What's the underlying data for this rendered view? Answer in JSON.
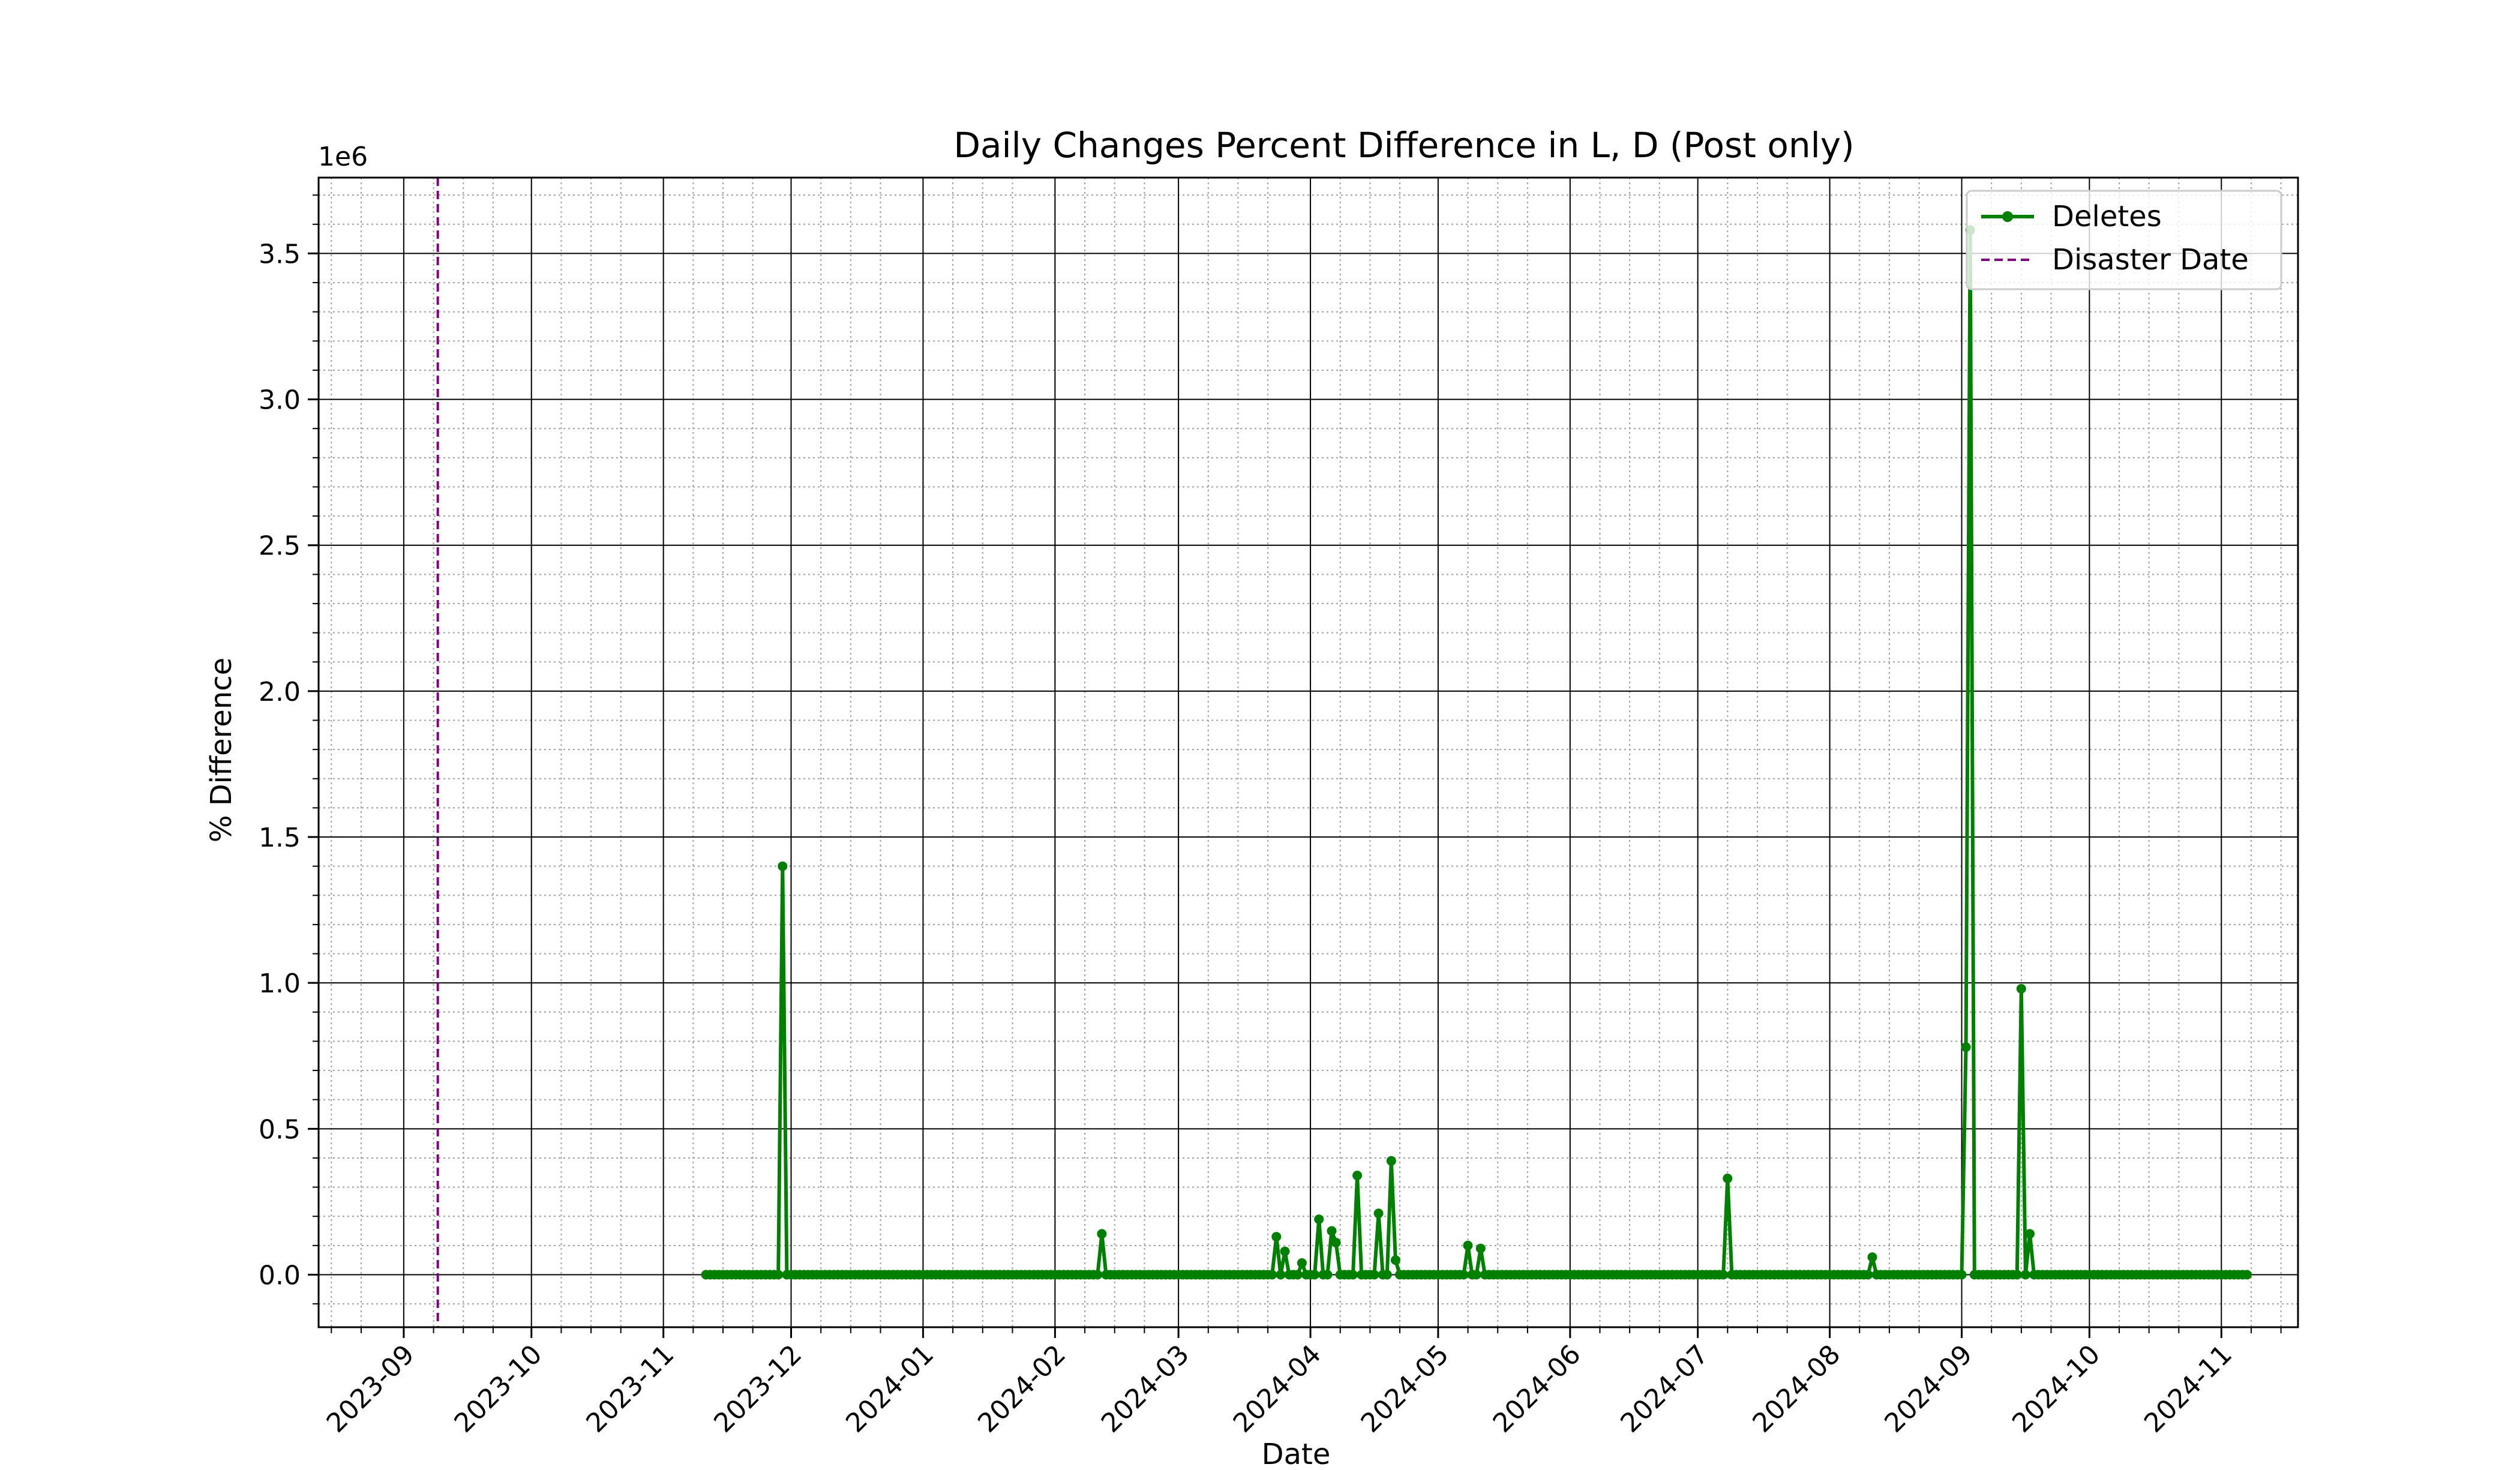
{
  "chart_data": {
    "type": "line",
    "title": "Daily Changes Percent Difference in L, D (Post only)",
    "xlabel": "Date",
    "ylabel": "% Difference",
    "y_offset_label": "1e6",
    "y_scale_factor": 1000000,
    "xlim": [
      "2023-08-12",
      "2024-11-19"
    ],
    "ylim": [
      -0.18,
      3.76
    ],
    "x_ticks": [
      "2023-09",
      "2023-10",
      "2023-11",
      "2023-12",
      "2024-01",
      "2024-02",
      "2024-03",
      "2024-04",
      "2024-05",
      "2024-06",
      "2024-07",
      "2024-08",
      "2024-09",
      "2024-10",
      "2024-11"
    ],
    "y_ticks": [
      "0.0",
      "0.5",
      "1.0",
      "1.5",
      "2.0",
      "2.5",
      "3.0",
      "3.5"
    ],
    "grid": {
      "major": true,
      "minor": true
    },
    "legend_position": "top-right",
    "series": [
      {
        "name": "Deletes",
        "color": "#008000",
        "marker": "point",
        "start_date": "2023-11-11",
        "end_date": "2024-11-07",
        "baseline_value": 0.0,
        "points": [
          [
            "2023-11-29",
            1.4
          ],
          [
            "2024-02-12",
            0.14
          ],
          [
            "2024-03-24",
            0.13
          ],
          [
            "2024-03-26",
            0.08
          ],
          [
            "2024-03-30",
            0.04
          ],
          [
            "2024-04-03",
            0.19
          ],
          [
            "2024-04-06",
            0.15
          ],
          [
            "2024-04-07",
            0.11
          ],
          [
            "2024-04-12",
            0.34
          ],
          [
            "2024-04-17",
            0.21
          ],
          [
            "2024-04-20",
            0.39
          ],
          [
            "2024-04-21",
            0.05
          ],
          [
            "2024-05-08",
            0.1
          ],
          [
            "2024-05-11",
            0.09
          ],
          [
            "2024-07-08",
            0.33
          ],
          [
            "2024-08-11",
            0.06
          ],
          [
            "2024-09-02",
            0.78
          ],
          [
            "2024-09-03",
            3.58
          ],
          [
            "2024-09-15",
            0.98
          ],
          [
            "2024-09-17",
            0.14
          ]
        ]
      }
    ],
    "reference_lines": [
      {
        "name": "Disaster Date",
        "date": "2023-09-09",
        "color": "#800080",
        "style": "dashed"
      }
    ]
  }
}
